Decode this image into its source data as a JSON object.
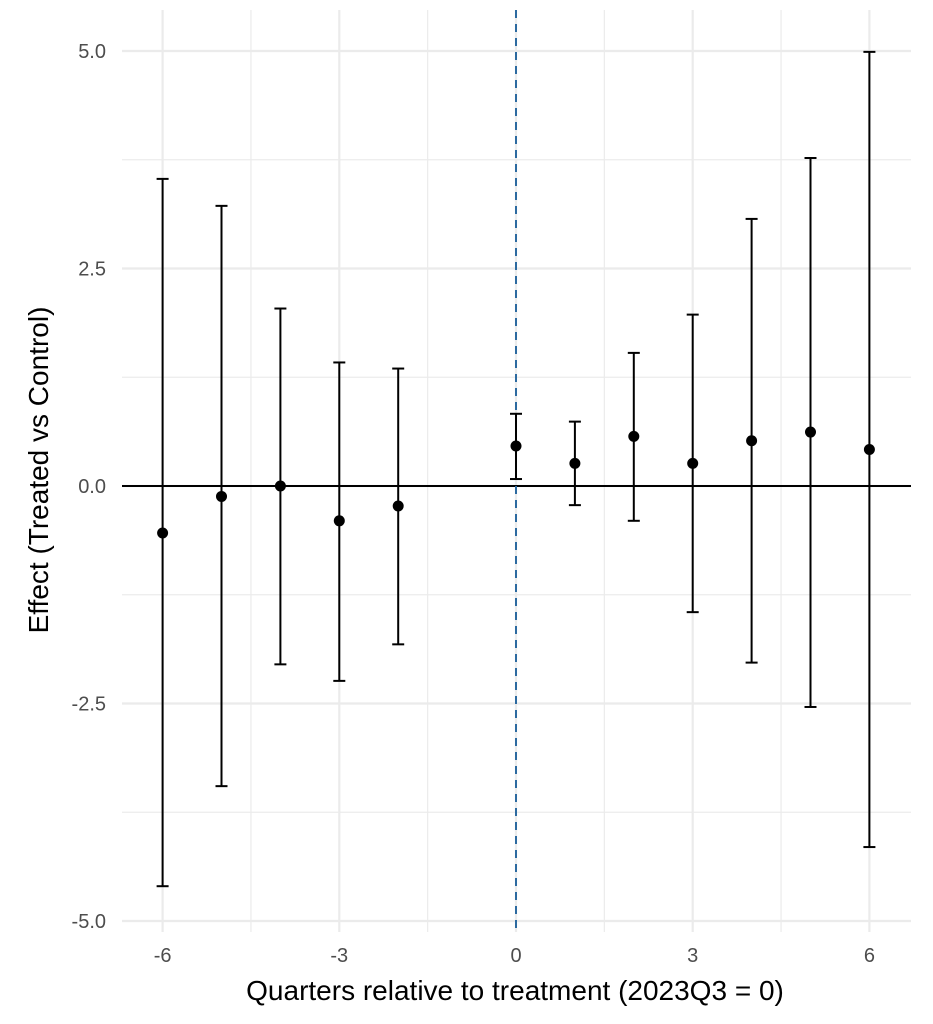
{
  "chart_data": {
    "type": "scatter",
    "subtype": "errorbar",
    "title": "",
    "xlabel": "Quarters relative to treatment (2023Q3 = 0)",
    "ylabel": "Effect (Treated vs Control)",
    "xlim": [
      -6.45,
      6.45
    ],
    "ylim": [
      -5.0,
      5.0
    ],
    "xticks": [
      -6,
      -3,
      0,
      3,
      6
    ],
    "xtick_labels": [
      "-6",
      "-3",
      "0",
      "3",
      "6"
    ],
    "yticks": [
      5.0,
      2.5,
      0.0,
      -2.5,
      -5.0
    ],
    "ytick_labels": [
      "5.0",
      "2.5",
      "0.0",
      "-2.5",
      "-5.0"
    ],
    "reference_line_y": 0,
    "reference_line_x": 0,
    "grid": true,
    "points": [
      {
        "x": -6,
        "estimate": -0.54,
        "lower": -4.6,
        "upper": 3.53
      },
      {
        "x": -5,
        "estimate": -0.12,
        "lower": -3.45,
        "upper": 3.22
      },
      {
        "x": -4,
        "estimate": 0.0,
        "lower": -2.05,
        "upper": 2.04
      },
      {
        "x": -3,
        "estimate": -0.4,
        "lower": -2.24,
        "upper": 1.42
      },
      {
        "x": -2,
        "estimate": -0.23,
        "lower": -1.82,
        "upper": 1.35
      },
      {
        "x": 0,
        "estimate": 0.46,
        "lower": 0.08,
        "upper": 0.83
      },
      {
        "x": 1,
        "estimate": 0.26,
        "lower": -0.22,
        "upper": 0.74
      },
      {
        "x": 2,
        "estimate": 0.57,
        "lower": -0.4,
        "upper": 1.53
      },
      {
        "x": 3,
        "estimate": 0.26,
        "lower": -1.45,
        "upper": 1.97
      },
      {
        "x": 4,
        "estimate": 0.52,
        "lower": -2.03,
        "upper": 3.07
      },
      {
        "x": 5,
        "estimate": 0.62,
        "lower": -2.54,
        "upper": 3.77
      },
      {
        "x": 6,
        "estimate": 0.42,
        "lower": -4.15,
        "upper": 4.99
      }
    ],
    "colors": {
      "points": "#000000",
      "zero_line": "#000000",
      "treatment_line": "#2c6aa0",
      "grid": "#ebebeb"
    }
  }
}
